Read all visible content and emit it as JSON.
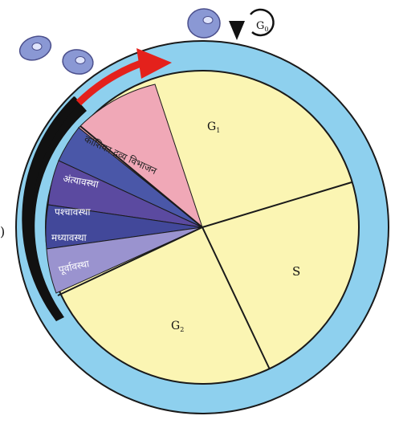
{
  "colors": {
    "ring": "#8ed0ee",
    "interphase": "#fbf5b3",
    "mitotic_band": "#111111",
    "arrow": "#e4211c",
    "cell_fill": "#8a98d4",
    "cytokinesis": "#f0a8b7",
    "telophase": "#4a57a8",
    "anaphase": "#5b4aa0",
    "metaphase": "#42489a",
    "prophase": "#9a93cf"
  },
  "diagram": {
    "g0_label": "G",
    "g0_sub": "0",
    "g1_label": "G",
    "g1_sub": "1",
    "s_label": "S",
    "g2_label": "G",
    "g2_sub": "2",
    "phases": {
      "cytokinesis": "कोशिका द्रव्य विभाजन",
      "telophase": "अंत्यावस्था",
      "anaphase": "पश्चावस्था",
      "metaphase": "मध्यावस्था",
      "prophase": "पूर्वावस्था"
    },
    "left_edge_mark": ")"
  }
}
